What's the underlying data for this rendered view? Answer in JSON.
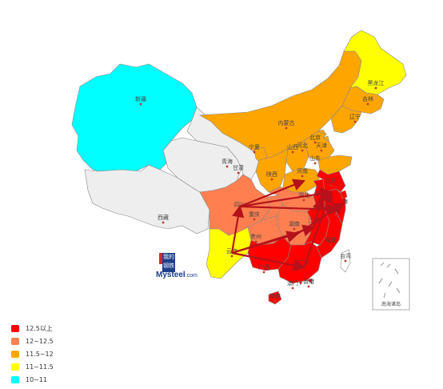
{
  "legend": [
    {
      "label": "12.5以上",
      "color": "#ff0000"
    },
    {
      "label": "12~12.5",
      "color": "#ff7f50"
    },
    {
      "label": "11.5~12",
      "color": "#ffa500"
    },
    {
      "label": "11~11.5",
      "color": "#ffff00"
    },
    {
      "label": "10~11",
      "color": "#00ffff"
    }
  ],
  "provinces": {
    "xinjiang": {
      "label": "新疆",
      "color": "#00ffff"
    },
    "xizang": {
      "label": "西藏",
      "color": "#eeeeee"
    },
    "qinghai": {
      "label": "青海",
      "color": "#eeeeee"
    },
    "gansu": {
      "label": "甘肃",
      "color": "#eeeeee"
    },
    "neimenggu": {
      "label": "内蒙古",
      "color": "#ffa500"
    },
    "heilongjiang": {
      "label": "黑龙江",
      "color": "#ffff00"
    },
    "jilin": {
      "label": "吉林",
      "color": "#ffa500"
    },
    "liaoning": {
      "label": "辽宁",
      "color": "#ffa500"
    },
    "beijing": {
      "label": "北京",
      "color": "#ffa500"
    },
    "tianjin": {
      "label": "天津",
      "color": "#ffa500"
    },
    "hebei": {
      "label": "河北",
      "color": "#ffa500"
    },
    "shanxi": {
      "label": "山西",
      "color": "#ffa500"
    },
    "ningxia": {
      "label": "宁夏",
      "color": "#ffa500"
    },
    "shaanxi": {
      "label": "陕西",
      "color": "#ffa500"
    },
    "shandong": {
      "label": "山东",
      "color": "#ffa500"
    },
    "henan": {
      "label": "河南",
      "color": "#ffa500"
    },
    "sichuan": {
      "label": "四川",
      "color": "#ff7f50"
    },
    "chongqing": {
      "label": "重庆",
      "color": "#ff7f50"
    },
    "hubei": {
      "label": "湖北",
      "color": "#ff7f50"
    },
    "hunan": {
      "label": "湖南",
      "color": "#ff7f50"
    },
    "guizhou": {
      "label": "贵州",
      "color": "#ff7f50"
    },
    "yunnan": {
      "label": "云南",
      "color": "#ffff00"
    },
    "guangxi": {
      "label": "广西",
      "color": "#ff0000"
    },
    "guangdong": {
      "label": "广东",
      "color": "#ff0000"
    },
    "jiangxi": {
      "label": "江西",
      "color": "#ff0000"
    },
    "fujian": {
      "label": "福建",
      "color": "#ff0000"
    },
    "zhejiang": {
      "label": "浙江",
      "color": "#ff0000"
    },
    "anhui": {
      "label": "安徽",
      "color": "#ff0000"
    },
    "jiangsu": {
      "label": "江苏",
      "color": "#ff0000"
    },
    "shanghai": {
      "label": "上海",
      "color": "#ff0000"
    },
    "hainan": {
      "label": "海南",
      "color": "#ff0000"
    },
    "taiwan": {
      "label": "台湾",
      "color": "#ffffff"
    },
    "xianggang": {
      "label": "香港",
      "color": "#ff0000"
    },
    "aomen": {
      "label": "澳门",
      "color": "#ff0000"
    }
  },
  "flow_arrows": [
    {
      "from": "云南",
      "to": "四川"
    },
    {
      "from": "云南",
      "to": "湖南"
    },
    {
      "from": "云南",
      "to": "广东"
    },
    {
      "from": "云南",
      "to": "江西"
    },
    {
      "from": "四川",
      "to": "河南"
    },
    {
      "from": "四川",
      "to": "浙江"
    },
    {
      "from": "四川",
      "to": "江苏"
    },
    {
      "from": "广东",
      "to": "江苏"
    },
    {
      "from": "湖南",
      "to": "上海"
    },
    {
      "from": "江西",
      "to": "安徽"
    }
  ],
  "arrow_color": "#b5121b",
  "nanhai_label": "南海诸岛",
  "logo": {
    "cn_top": "我的",
    "cn_bottom": "钢铁",
    "brand": "Mysteel",
    "suffix": ".com"
  }
}
